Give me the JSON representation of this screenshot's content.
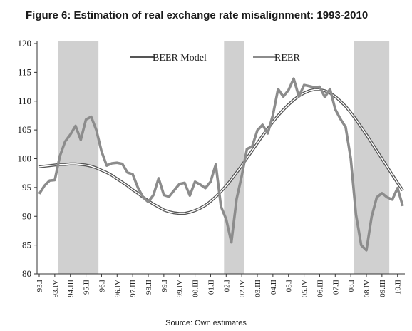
{
  "chart_data": {
    "type": "line",
    "title": "Figure  6: Estimation of real exchange rate misalignment: 1993-2010",
    "source": "Source: Own estimates",
    "ylim": [
      80,
      120
    ],
    "y_ticks": [
      80,
      85,
      90,
      95,
      100,
      105,
      110,
      115,
      120
    ],
    "x_tick_labels": [
      "93.I",
      "93.IV",
      "94.III",
      "95.II",
      "96.I",
      "96.IV",
      "97.III",
      "98.II",
      "99.I",
      "99.IV",
      "00.III",
      "01.II",
      "02.I",
      "02.IV",
      "03.III",
      "04.II",
      "05.I",
      "05.IV",
      "06.III",
      "07.II",
      "08.I",
      "08.IV",
      "09.III",
      "10.II"
    ],
    "x_start_quarter": "1993Q1",
    "quarter_count": 71,
    "shaded_periods": [
      {
        "from": "1994Q1",
        "to": "1995Q4"
      },
      {
        "from": "2002Q1",
        "to": "2002Q4"
      },
      {
        "from": "2008Q2",
        "to": "2009Q4"
      }
    ],
    "legend": [
      "BEER Model",
      "REER"
    ],
    "colors": {
      "beer": "#555555",
      "reer": "#8c8c8c",
      "shade": "#d0d0d0"
    },
    "series": [
      {
        "name": "BEER Model",
        "values": [
          98.6,
          98.7,
          98.8,
          98.9,
          99.0,
          99.0,
          99.1,
          99.1,
          99.0,
          98.9,
          98.7,
          98.4,
          98.0,
          97.6,
          97.1,
          96.5,
          95.9,
          95.3,
          94.6,
          94.0,
          93.3,
          92.7,
          92.1,
          91.6,
          91.1,
          90.8,
          90.6,
          90.5,
          90.5,
          90.7,
          91.0,
          91.4,
          91.9,
          92.6,
          93.4,
          94.3,
          95.3,
          96.4,
          97.6,
          98.8,
          100.1,
          101.4,
          102.7,
          104.0,
          105.2,
          106.4,
          107.5,
          108.5,
          109.4,
          110.2,
          110.9,
          111.4,
          111.8,
          112.0,
          112.0,
          111.8,
          111.4,
          110.8,
          110.0,
          109.1,
          108.0,
          106.8,
          105.5,
          104.2,
          102.8,
          101.4,
          100.0,
          98.6,
          97.2,
          95.8,
          94.5
        ]
      },
      {
        "name": "REER",
        "values": [
          93.9,
          95.3,
          96.2,
          96.3,
          100.5,
          103.0,
          104.2,
          105.7,
          103.3,
          106.8,
          107.3,
          105.0,
          101.3,
          98.8,
          99.2,
          99.3,
          99.1,
          97.6,
          97.3,
          95.0,
          93.3,
          92.5,
          93.7,
          96.6,
          93.7,
          93.4,
          94.5,
          95.6,
          95.8,
          93.6,
          96.0,
          95.5,
          94.9,
          96.0,
          99.0,
          91.7,
          89.5,
          85.5,
          93.0,
          97.0,
          101.7,
          102.1,
          104.9,
          105.9,
          104.4,
          107.6,
          112.1,
          110.8,
          111.9,
          113.9,
          110.8,
          112.8,
          112.6,
          112.4,
          112.5,
          110.7,
          112.1,
          108.6,
          106.9,
          105.5,
          100.0,
          90.3,
          85.0,
          84.1,
          89.9,
          93.3,
          94.0,
          93.3,
          92.9,
          94.9,
          91.8
        ]
      }
    ]
  }
}
